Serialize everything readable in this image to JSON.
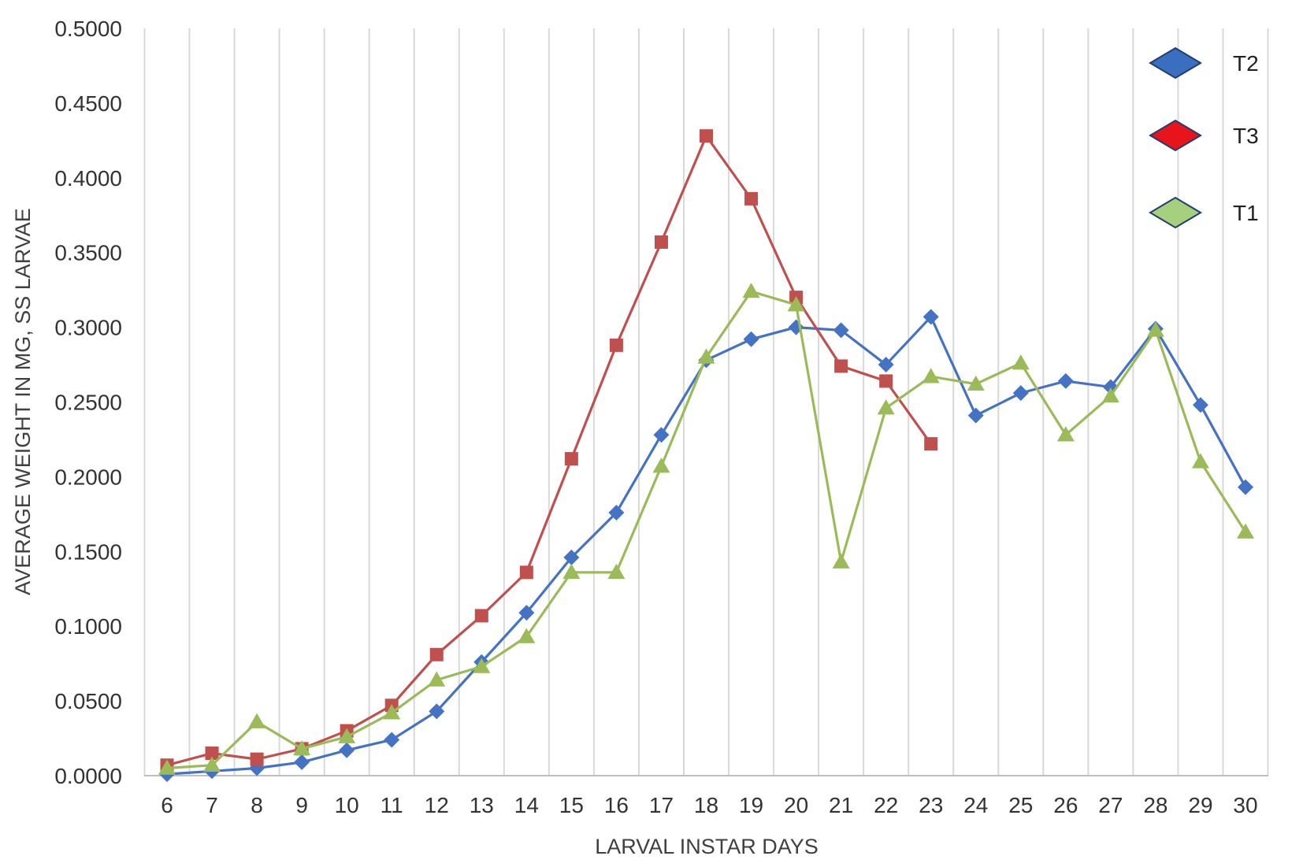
{
  "chart_data": {
    "type": "line",
    "xlabel": "LARVAL INSTAR DAYS",
    "ylabel": "AVERAGE WEIGHT IN MG, SS LARVAE",
    "x": [
      6,
      7,
      8,
      9,
      10,
      11,
      12,
      13,
      14,
      15,
      16,
      17,
      18,
      19,
      20,
      21,
      22,
      23,
      24,
      25,
      26,
      27,
      28,
      29,
      30
    ],
    "x_tick_labels": [
      "6",
      "7",
      "8",
      "9",
      "10",
      "11",
      "12",
      "13",
      "14",
      "15",
      "16",
      "17",
      "18",
      "19",
      "20",
      "21",
      "22",
      "23",
      "24",
      "25",
      "26",
      "27",
      "28",
      "29",
      "30"
    ],
    "ylim": [
      0,
      0.5
    ],
    "y_tick_labels": [
      "0.0000",
      "0.0500",
      "0.1000",
      "0.1500",
      "0.2000",
      "0.2500",
      "0.3000",
      "0.3500",
      "0.4000",
      "0.4500",
      "0.5000"
    ],
    "grid": "vertical",
    "legend_position": "top-right",
    "series": [
      {
        "name": "T2",
        "color": "#4472C4",
        "marker": "diamond",
        "values": [
          0.001,
          0.003,
          0.005,
          0.009,
          0.017,
          0.024,
          0.043,
          0.076,
          0.109,
          0.146,
          0.176,
          0.228,
          0.278,
          0.292,
          0.3,
          0.298,
          0.275,
          0.307,
          0.241,
          0.256,
          0.264,
          0.26,
          0.299,
          0.248,
          0.193
        ]
      },
      {
        "name": "T3",
        "color": "#C0504D",
        "marker": "square",
        "values": [
          0.007,
          0.015,
          0.011,
          0.018,
          0.03,
          0.047,
          0.081,
          0.107,
          0.136,
          0.212,
          0.288,
          0.357,
          0.428,
          0.386,
          0.32,
          0.274,
          0.264,
          0.222,
          null,
          null,
          null,
          null,
          null,
          null,
          null
        ]
      },
      {
        "name": "T1",
        "color": "#9BBB59",
        "marker": "triangle",
        "values": [
          0.005,
          0.007,
          0.036,
          0.018,
          0.026,
          0.042,
          0.064,
          0.073,
          0.093,
          0.136,
          0.136,
          0.207,
          0.28,
          0.324,
          0.315,
          0.143,
          0.246,
          0.267,
          0.262,
          0.276,
          0.228,
          0.254,
          0.298,
          0.21,
          0.163
        ]
      }
    ],
    "legend": [
      {
        "name": "T2",
        "color": "#3A6FC0"
      },
      {
        "name": "T3",
        "color": "#E8141B"
      },
      {
        "name": "T1",
        "color": "#A6D07E"
      }
    ]
  }
}
